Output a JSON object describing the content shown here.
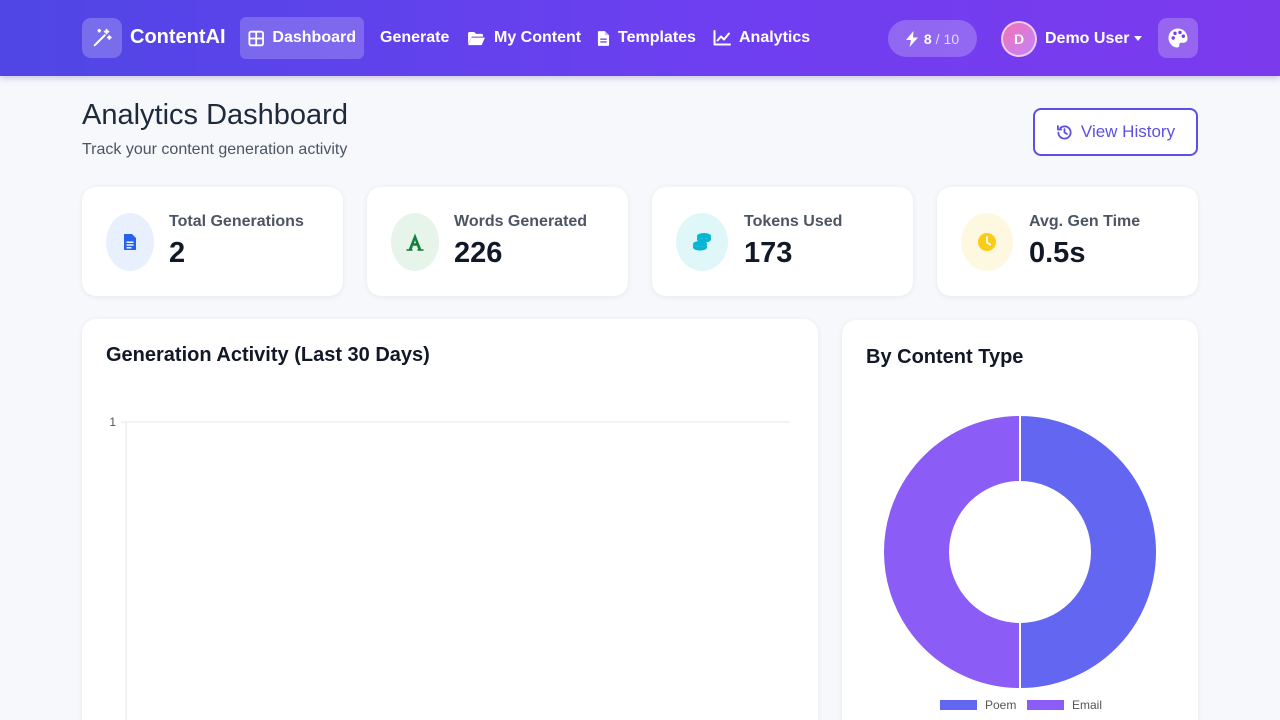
{
  "navbar": {
    "brand": "ContentAI",
    "items": [
      {
        "label": "Dashboard",
        "icon": "dashboard-grid-icon",
        "active": true
      },
      {
        "label": "Generate",
        "icon": "",
        "active": false
      },
      {
        "label": "My Content",
        "icon": "folder-open-icon",
        "active": false
      },
      {
        "label": "Templates",
        "icon": "file-text-icon",
        "active": false
      },
      {
        "label": "Analytics",
        "icon": "line-chart-icon",
        "active": false
      }
    ],
    "quota": {
      "used": "8",
      "total": "10"
    },
    "user": {
      "initial": "D",
      "name": "Demo User"
    }
  },
  "header": {
    "title": "Analytics Dashboard",
    "subtitle": "Track your content generation activity",
    "history_button": "View History"
  },
  "stats": [
    {
      "label": "Total Generations",
      "value": "2",
      "icon": "file-document-icon",
      "color": "#2563eb",
      "bg": "#e8f0fe"
    },
    {
      "label": "Words Generated",
      "value": "226",
      "icon": "font-letter-icon",
      "color": "#15803d",
      "bg": "#e6f4ea"
    },
    {
      "label": "Tokens Used",
      "value": "173",
      "icon": "coins-icon",
      "color": "#06b6d4",
      "bg": "#e0f7fa"
    },
    {
      "label": "Avg. Gen Time",
      "value": "0.5s",
      "icon": "clock-icon",
      "color": "#facc15",
      "bg": "#fff8e1"
    }
  ],
  "activity": {
    "title": "Generation Activity (Last 30 Days)"
  },
  "content_type": {
    "title": "By Content Type"
  },
  "colors": {
    "accent": "#5b50e6",
    "poem": "#6366f1",
    "email": "#8b5cf6"
  },
  "chart_data": [
    {
      "type": "line",
      "title": "Generation Activity (Last 30 Days)",
      "y_ticks": [
        "1"
      ],
      "ylim_max_visible": 1,
      "series": []
    },
    {
      "type": "pie",
      "title": "By Content Type",
      "donut": true,
      "labels": [
        "Poem",
        "Email"
      ],
      "values": [
        1,
        1
      ],
      "colors": [
        "#6366f1",
        "#8b5cf6"
      ],
      "legend_position": "bottom"
    }
  ]
}
